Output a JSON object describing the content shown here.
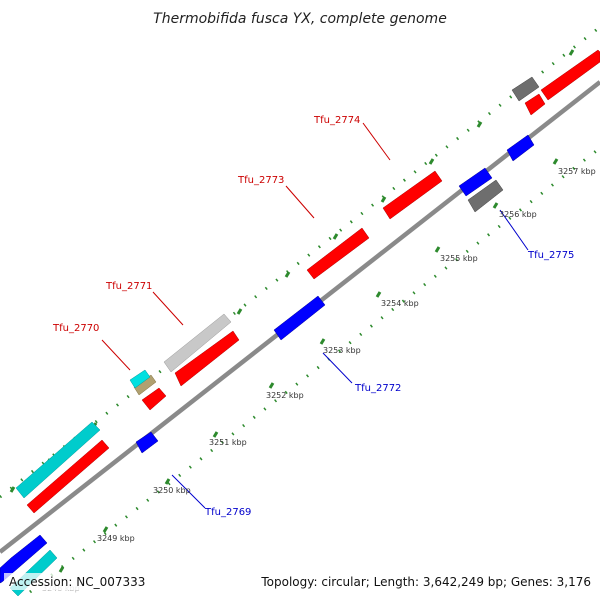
{
  "title": "Thermobifida fusca YX, complete genome",
  "accession": "Accession: NC_007333",
  "summary": "Topology: circular; Length: 3,642,249 bp; Genes: 3,176",
  "faded_label": "3248 kbp",
  "colors": {
    "forward": "#ff0000",
    "reverse": "#0000ff",
    "rna": "#00cccc",
    "other": "#c8c8c8",
    "dark": "#6e6e6e",
    "misc": "#b0a070",
    "backbone": "#888888",
    "tick": "#2d8a2d",
    "label_forward": "#cc0000",
    "label_reverse": "#0000cc"
  },
  "ticks": [
    {
      "label": "3249 kbp"
    },
    {
      "label": "3250 kbp"
    },
    {
      "label": "3251 kbp"
    },
    {
      "label": "3252 kbp"
    },
    {
      "label": "3253 kbp"
    },
    {
      "label": "3254 kbp"
    },
    {
      "label": "3255 kbp"
    },
    {
      "label": "3256 kbp"
    },
    {
      "label": "3257 kbp"
    }
  ],
  "gene_labels": [
    {
      "name": "Tfu_2770",
      "strand": "forward"
    },
    {
      "name": "Tfu_2771",
      "strand": "forward"
    },
    {
      "name": "Tfu_2773",
      "strand": "forward"
    },
    {
      "name": "Tfu_2774",
      "strand": "forward"
    },
    {
      "name": "Tfu_2775",
      "strand": "reverse"
    },
    {
      "name": "Tfu_2772",
      "strand": "reverse"
    },
    {
      "name": "Tfu_2769",
      "strand": "reverse"
    }
  ]
}
